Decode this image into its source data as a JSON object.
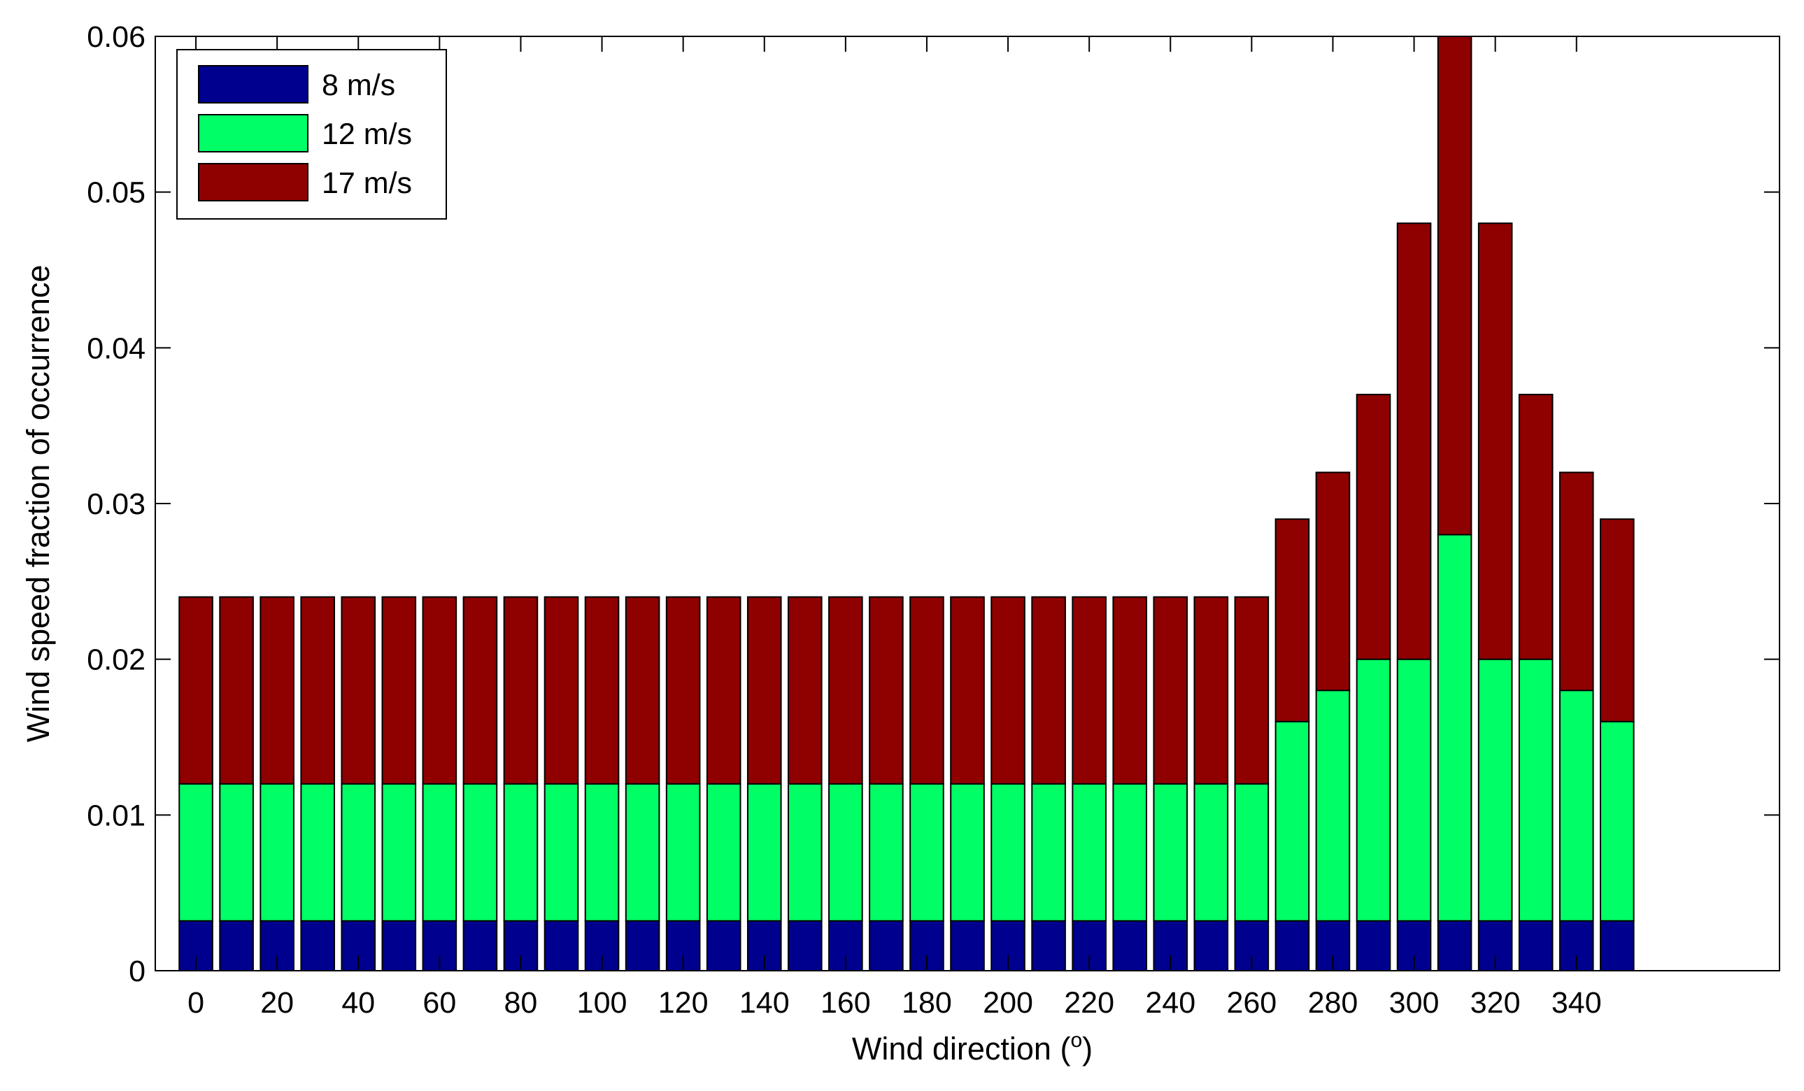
{
  "chart_data": {
    "type": "bar",
    "stacked": true,
    "xlabel": "Wind direction (",
    "xlabel_sup": "o",
    "xlabel_end": ")",
    "ylabel": "Wind speed fraction of occurrence",
    "ylim": [
      0,
      0.06
    ],
    "xlim": [
      -10,
      390
    ],
    "yticks": [
      "0",
      "0.01",
      "0.02",
      "0.03",
      "0.04",
      "0.05",
      "0.06"
    ],
    "xticks": [
      "0",
      "20",
      "40",
      "60",
      "80",
      "100",
      "120",
      "140",
      "160",
      "180",
      "200",
      "220",
      "240",
      "260",
      "280",
      "300",
      "320",
      "340"
    ],
    "grid": false,
    "legend_position": "top-left",
    "x": [
      0,
      10,
      20,
      30,
      40,
      50,
      60,
      70,
      80,
      90,
      100,
      110,
      120,
      130,
      140,
      150,
      160,
      170,
      180,
      190,
      200,
      210,
      220,
      230,
      240,
      250,
      260,
      270,
      280,
      290,
      300,
      310,
      320,
      330,
      340,
      350
    ],
    "series": [
      {
        "name": "8 m/s",
        "color": "#00008f",
        "values": [
          0.0032,
          0.0032,
          0.0032,
          0.0032,
          0.0032,
          0.0032,
          0.0032,
          0.0032,
          0.0032,
          0.0032,
          0.0032,
          0.0032,
          0.0032,
          0.0032,
          0.0032,
          0.0032,
          0.0032,
          0.0032,
          0.0032,
          0.0032,
          0.0032,
          0.0032,
          0.0032,
          0.0032,
          0.0032,
          0.0032,
          0.0032,
          0.0032,
          0.0032,
          0.0032,
          0.0032,
          0.0032,
          0.0032,
          0.0032,
          0.0032,
          0.0032
        ]
      },
      {
        "name": "12 m/s",
        "color": "#00ff66",
        "values": [
          0.0088,
          0.0088,
          0.0088,
          0.0088,
          0.0088,
          0.0088,
          0.0088,
          0.0088,
          0.0088,
          0.0088,
          0.0088,
          0.0088,
          0.0088,
          0.0088,
          0.0088,
          0.0088,
          0.0088,
          0.0088,
          0.0088,
          0.0088,
          0.0088,
          0.0088,
          0.0088,
          0.0088,
          0.0088,
          0.0088,
          0.0088,
          0.0128,
          0.0148,
          0.0168,
          0.0168,
          0.0248,
          0.0168,
          0.0168,
          0.0148,
          0.0128
        ]
      },
      {
        "name": "17 m/s",
        "color": "#8f0000",
        "values": [
          0.012,
          0.012,
          0.012,
          0.012,
          0.012,
          0.012,
          0.012,
          0.012,
          0.012,
          0.012,
          0.012,
          0.012,
          0.012,
          0.012,
          0.012,
          0.012,
          0.012,
          0.012,
          0.012,
          0.012,
          0.012,
          0.012,
          0.012,
          0.012,
          0.012,
          0.012,
          0.012,
          0.013,
          0.014,
          0.017,
          0.028,
          0.032,
          0.028,
          0.017,
          0.014,
          0.013
        ]
      }
    ]
  }
}
